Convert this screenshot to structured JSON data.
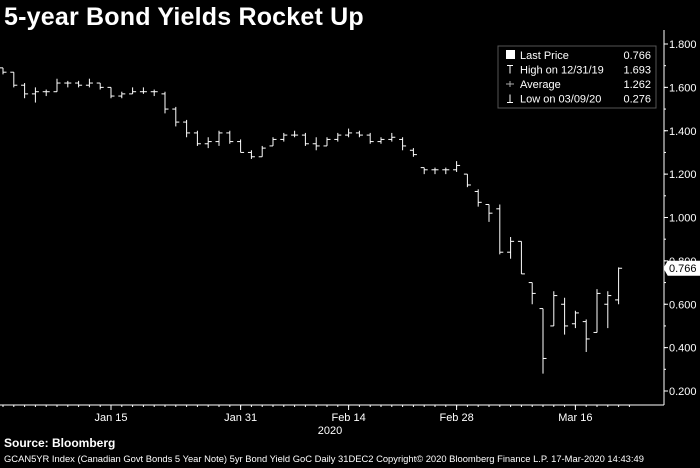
{
  "title": "5-year Bond Yields Rocket Up",
  "source": "Source: Bloomberg",
  "footer": "GCAN5YR Index (Canadian Govt Bonds 5 Year Note) 5yr Bond Yield GoC  Daily 31DEC2 Copyright© 2020 Bloomberg Finance L.P.  17-Mar-2020 14:43:49",
  "chart_data": {
    "type": "ohlc",
    "title": "5-year Bond Yields Rocket Up",
    "xlabel": "2020",
    "ylabel": "",
    "ylim": [
      0.1,
      1.85
    ],
    "yticks": [
      0.2,
      0.4,
      0.6,
      0.8,
      1.0,
      1.2,
      1.4,
      1.6,
      1.8
    ],
    "ytick_labels": [
      "0.200",
      "0.400",
      "0.600",
      "0.800",
      "1.000",
      "1.200",
      "1.400",
      "1.600",
      "1.800"
    ],
    "x_ticks": [
      {
        "label": "Jan 15",
        "index": 10
      },
      {
        "label": "Jan 31",
        "index": 22
      },
      {
        "label": "Feb 14",
        "index": 32
      },
      {
        "label": "Feb 28",
        "index": 42
      },
      {
        "label": "Mar 16",
        "index": 53
      }
    ],
    "series": [
      {
        "high": 1.69,
        "low": 1.66,
        "open": 1.69,
        "close": 1.67
      },
      {
        "high": 1.67,
        "low": 1.6,
        "open": 1.67,
        "close": 1.61
      },
      {
        "high": 1.62,
        "low": 1.55,
        "open": 1.61,
        "close": 1.57
      },
      {
        "high": 1.6,
        "low": 1.53,
        "open": 1.57,
        "close": 1.58
      },
      {
        "high": 1.59,
        "low": 1.56,
        "open": 1.58,
        "close": 1.58
      },
      {
        "high": 1.64,
        "low": 1.58,
        "open": 1.58,
        "close": 1.62
      },
      {
        "high": 1.63,
        "low": 1.6,
        "open": 1.62,
        "close": 1.62
      },
      {
        "high": 1.63,
        "low": 1.6,
        "open": 1.62,
        "close": 1.61
      },
      {
        "high": 1.64,
        "low": 1.6,
        "open": 1.61,
        "close": 1.62
      },
      {
        "high": 1.62,
        "low": 1.59,
        "open": 1.62,
        "close": 1.6
      },
      {
        "high": 1.6,
        "low": 1.55,
        "open": 1.6,
        "close": 1.56
      },
      {
        "high": 1.58,
        "low": 1.55,
        "open": 1.56,
        "close": 1.57
      },
      {
        "high": 1.6,
        "low": 1.57,
        "open": 1.57,
        "close": 1.58
      },
      {
        "high": 1.6,
        "low": 1.57,
        "open": 1.58,
        "close": 1.58
      },
      {
        "high": 1.59,
        "low": 1.56,
        "open": 1.58,
        "close": 1.58
      },
      {
        "high": 1.58,
        "low": 1.48,
        "open": 1.57,
        "close": 1.5
      },
      {
        "high": 1.51,
        "low": 1.42,
        "open": 1.5,
        "close": 1.44
      },
      {
        "high": 1.45,
        "low": 1.37,
        "open": 1.44,
        "close": 1.39
      },
      {
        "high": 1.4,
        "low": 1.33,
        "open": 1.39,
        "close": 1.34
      },
      {
        "high": 1.37,
        "low": 1.32,
        "open": 1.34,
        "close": 1.35
      },
      {
        "high": 1.4,
        "low": 1.33,
        "open": 1.35,
        "close": 1.39
      },
      {
        "high": 1.4,
        "low": 1.34,
        "open": 1.39,
        "close": 1.35
      },
      {
        "high": 1.36,
        "low": 1.3,
        "open": 1.35,
        "close": 1.3
      },
      {
        "high": 1.31,
        "low": 1.27,
        "open": 1.3,
        "close": 1.28
      },
      {
        "high": 1.33,
        "low": 1.28,
        "open": 1.28,
        "close": 1.32
      },
      {
        "high": 1.37,
        "low": 1.33,
        "open": 1.33,
        "close": 1.36
      },
      {
        "high": 1.39,
        "low": 1.35,
        "open": 1.36,
        "close": 1.38
      },
      {
        "high": 1.4,
        "low": 1.37,
        "open": 1.38,
        "close": 1.38
      },
      {
        "high": 1.39,
        "low": 1.33,
        "open": 1.38,
        "close": 1.34
      },
      {
        "high": 1.37,
        "low": 1.31,
        "open": 1.34,
        "close": 1.33
      },
      {
        "high": 1.37,
        "low": 1.33,
        "open": 1.33,
        "close": 1.36
      },
      {
        "high": 1.39,
        "low": 1.35,
        "open": 1.36,
        "close": 1.38
      },
      {
        "high": 1.41,
        "low": 1.37,
        "open": 1.38,
        "close": 1.39
      },
      {
        "high": 1.4,
        "low": 1.37,
        "open": 1.39,
        "close": 1.38
      },
      {
        "high": 1.39,
        "low": 1.34,
        "open": 1.38,
        "close": 1.35
      },
      {
        "high": 1.37,
        "low": 1.34,
        "open": 1.35,
        "close": 1.36
      },
      {
        "high": 1.39,
        "low": 1.35,
        "open": 1.36,
        "close": 1.37
      },
      {
        "high": 1.37,
        "low": 1.31,
        "open": 1.36,
        "close": 1.33
      },
      {
        "high": 1.32,
        "low": 1.28,
        "open": 1.31,
        "close": 1.29
      },
      {
        "high": 1.23,
        "low": 1.2,
        "open": 1.23,
        "close": 1.22
      },
      {
        "high": 1.23,
        "low": 1.2,
        "open": 1.22,
        "close": 1.22
      },
      {
        "high": 1.23,
        "low": 1.2,
        "open": 1.22,
        "close": 1.22
      },
      {
        "high": 1.26,
        "low": 1.21,
        "open": 1.22,
        "close": 1.24
      },
      {
        "high": 1.2,
        "low": 1.14,
        "open": 1.2,
        "close": 1.15
      },
      {
        "high": 1.13,
        "low": 1.05,
        "open": 1.12,
        "close": 1.07
      },
      {
        "high": 1.06,
        "low": 0.98,
        "open": 1.06,
        "close": 1.02
      },
      {
        "high": 1.06,
        "low": 0.83,
        "open": 1.04,
        "close": 0.84
      },
      {
        "high": 0.91,
        "low": 0.81,
        "open": 0.84,
        "close": 0.89
      },
      {
        "high": 0.89,
        "low": 0.74,
        "open": 0.89,
        "close": 0.74
      },
      {
        "high": 0.7,
        "low": 0.6,
        "open": 0.7,
        "close": 0.65
      },
      {
        "high": 0.58,
        "low": 0.28,
        "open": 0.58,
        "close": 0.35
      },
      {
        "high": 0.66,
        "low": 0.5,
        "open": 0.5,
        "close": 0.64
      },
      {
        "high": 0.63,
        "low": 0.46,
        "open": 0.6,
        "close": 0.5
      },
      {
        "high": 0.57,
        "low": 0.49,
        "open": 0.51,
        "close": 0.56
      },
      {
        "high": 0.53,
        "low": 0.38,
        "open": 0.52,
        "close": 0.44
      },
      {
        "high": 0.67,
        "low": 0.47,
        "open": 0.47,
        "close": 0.65
      },
      {
        "high": 0.66,
        "low": 0.49,
        "open": 0.6,
        "close": 0.64
      },
      {
        "high": 0.77,
        "low": 0.6,
        "open": 0.62,
        "close": 0.766
      }
    ],
    "last_value": "0.766",
    "legend": {
      "position": "top-right",
      "entries": [
        {
          "label": "Last Price",
          "value": "0.766"
        },
        {
          "label": "High on 12/31/19",
          "value": "1.693"
        },
        {
          "label": "Average",
          "value": "1.262"
        },
        {
          "label": "Low on 03/09/20",
          "value": "0.276"
        }
      ]
    },
    "grid": false
  }
}
